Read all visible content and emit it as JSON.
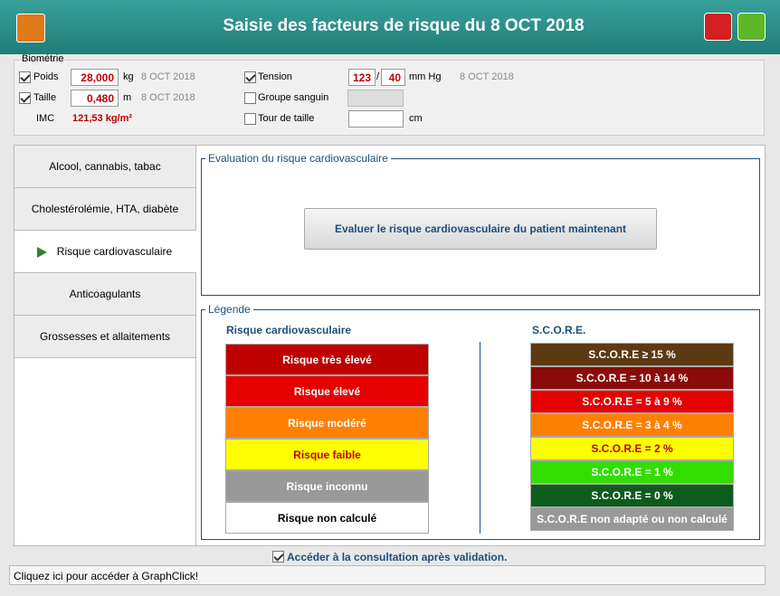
{
  "header": {
    "title": "Saisie des facteurs de risque du 8 OCT 2018"
  },
  "biometrie": {
    "label": "Biométrie",
    "poids": {
      "checked": true,
      "label": "Poids",
      "value": "28,000",
      "unit": "kg",
      "date": "8 OCT 2018"
    },
    "taille": {
      "checked": true,
      "label": "Taille",
      "value": "0,480",
      "unit": "m",
      "date": "8 OCT 2018"
    },
    "imc": {
      "label": "IMC",
      "value": "121,53 kg/m²"
    },
    "tension": {
      "checked": true,
      "label": "Tension",
      "systolic": "123",
      "separator": "/",
      "diastolic": "40",
      "unit": "mm Hg",
      "date": "8 OCT 2018"
    },
    "groupe_sanguin": {
      "checked": false,
      "label": "Groupe sanguin"
    },
    "tour_de_taille": {
      "checked": false,
      "label": "Tour de taille",
      "unit": "cm"
    }
  },
  "tabs": [
    "Alcool, cannabis, tabac",
    "Cholestérolémie, HTA, diabète",
    "Risque cardiovasculaire",
    "Anticoagulants",
    "Grossesses et allaitements"
  ],
  "active_tab": 2,
  "evaluation": {
    "title": "Evaluation du risque cardiovasculaire",
    "button": "Evaluer le risque cardiovasculaire du patient maintenant"
  },
  "legende": {
    "title": "Légende",
    "risk": {
      "heading": "Risque cardiovasculaire",
      "items": [
        {
          "label": "Risque très élevé",
          "color": "#c00000",
          "text_color": "#ffffff"
        },
        {
          "label": "Risque élevé",
          "color": "#e60000",
          "text_color": "#ffffff"
        },
        {
          "label": "Risque modéré",
          "color": "#ff8000",
          "text_color": "#ffffff"
        },
        {
          "label": "Risque faible",
          "color": "#ffff00",
          "text_color": "#c00000"
        },
        {
          "label": "Risque inconnu",
          "color": "#999999",
          "text_color": "#ffffff"
        },
        {
          "label": "Risque non calculé",
          "color": "#ffffff",
          "text_color": "#000000"
        }
      ]
    },
    "score": {
      "heading": "S.C.O.R.E.",
      "items": [
        {
          "label": "S.C.O.R.E ≥ 15 %",
          "color": "#5c3a12",
          "text_color": "#ffffff"
        },
        {
          "label": "S.C.O.R.E = 10 à 14 %",
          "color": "#8b0a0a",
          "text_color": "#ffffff"
        },
        {
          "label": "S.C.O.R.E = 5 à 9 %",
          "color": "#e60000",
          "text_color": "#ffffff"
        },
        {
          "label": "S.C.O.R.E = 3 à 4 %",
          "color": "#ff8000",
          "text_color": "#ffffff"
        },
        {
          "label": "S.C.O.R.E = 2 %",
          "color": "#ffff00",
          "text_color": "#c00000"
        },
        {
          "label": "S.C.O.R.E = 1 %",
          "color": "#33dd00",
          "text_color": "#ffffff"
        },
        {
          "label": "S.C.O.R.E = 0 %",
          "color": "#0d5c1e",
          "text_color": "#ffffff"
        },
        {
          "label": "S.C.O.R.E non adapté ou non calculé",
          "color": "#999999",
          "text_color": "#ffffff"
        }
      ]
    }
  },
  "footer": {
    "checked": true,
    "checkbox": "Accéder à la consultation après validation.",
    "status": "Cliquez ici pour accéder à GraphClick!"
  }
}
